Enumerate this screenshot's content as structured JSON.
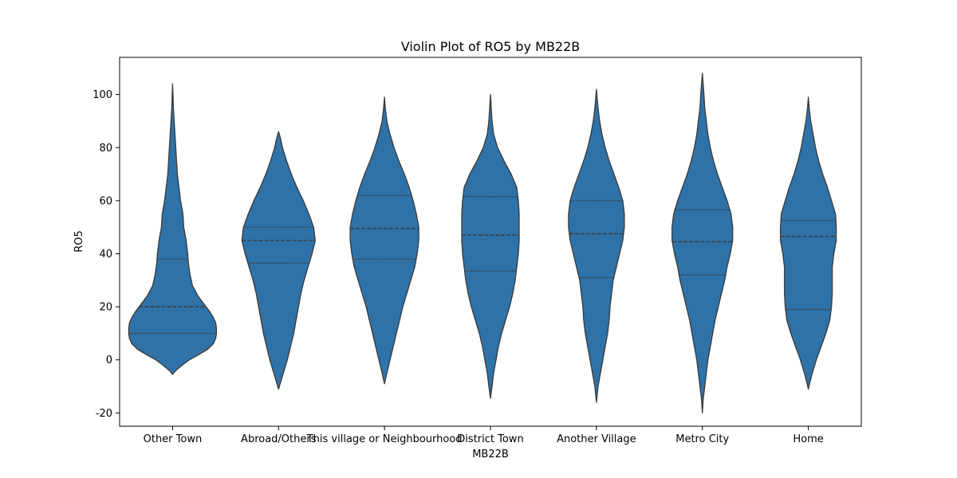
{
  "chart_data": {
    "type": "violin",
    "title": "Violin Plot of RO5 by MB22B",
    "xlabel": "MB22B",
    "ylabel": "RO5",
    "ylim": [
      -25,
      114
    ],
    "yticks": [
      -20,
      0,
      20,
      40,
      60,
      80,
      100
    ],
    "grid": false,
    "fill_color": "#2e72a8",
    "edge_color": "#3a3a3a",
    "categories": [
      "Other Town",
      "Abroad/Others",
      "This village or Neighbourhood",
      "District Town",
      "Another Village",
      "Metro City",
      "Home"
    ],
    "violins": [
      {
        "category": "Other Town",
        "quartiles": [
          10,
          20,
          38
        ],
        "profile": [
          [
            -5.5,
            0
          ],
          [
            -4,
            4
          ],
          [
            -2,
            12
          ],
          [
            0,
            21
          ],
          [
            2,
            33
          ],
          [
            4,
            44
          ],
          [
            6,
            51
          ],
          [
            8,
            54
          ],
          [
            10,
            55
          ],
          [
            12,
            55
          ],
          [
            14,
            54
          ],
          [
            16,
            51
          ],
          [
            18,
            47
          ],
          [
            20,
            42
          ],
          [
            24,
            32
          ],
          [
            28,
            25
          ],
          [
            32,
            22
          ],
          [
            36,
            20
          ],
          [
            40,
            19
          ],
          [
            45,
            17
          ],
          [
            50,
            14
          ],
          [
            55,
            13
          ],
          [
            60,
            10
          ],
          [
            65,
            8
          ],
          [
            70,
            6
          ],
          [
            75,
            5
          ],
          [
            80,
            4
          ],
          [
            85,
            3
          ],
          [
            90,
            2
          ],
          [
            95,
            1
          ],
          [
            100,
            0.5
          ],
          [
            104,
            0
          ]
        ]
      },
      {
        "category": "Abroad/Others",
        "quartiles": [
          36.5,
          45,
          50
        ]
      },
      {
        "category": "This village or Neighbourhood",
        "quartiles": [
          38,
          49.5,
          62
        ]
      },
      {
        "category": "District Town",
        "quartiles": [
          33.5,
          47,
          61.5
        ]
      },
      {
        "category": "Another Village",
        "quartiles": [
          31,
          47.5,
          60
        ]
      },
      {
        "category": "Metro City",
        "quartiles": [
          32,
          44.5,
          56.5
        ]
      },
      {
        "category": "Home",
        "quartiles": [
          19,
          46.5,
          52.5
        ]
      }
    ]
  }
}
